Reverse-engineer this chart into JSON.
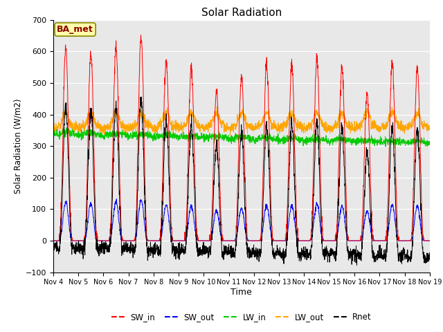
{
  "title": "Solar Radiation",
  "xlabel": "Time",
  "ylabel": "Solar Radiation (W/m2)",
  "station_label": "BA_met",
  "ylim": [
    -100,
    700
  ],
  "yticks": [
    -100,
    0,
    100,
    200,
    300,
    400,
    500,
    600,
    700
  ],
  "x_tick_labels": [
    "Nov 4",
    "Nov 5",
    "Nov 6",
    "Nov 7",
    "Nov 8",
    "Nov 9",
    "Nov 10",
    "Nov 11",
    "Nov 12",
    "Nov 13",
    "Nov 14",
    "Nov 15",
    "Nov 16",
    "Nov 17",
    "Nov 18",
    "Nov 19"
  ],
  "series_colors": {
    "SW_in": "#ff0000",
    "SW_out": "#0000ff",
    "LW_in": "#00cc00",
    "LW_out": "#ffa500",
    "Rnet": "#000000"
  },
  "legend_entries": [
    "SW_in",
    "SW_out",
    "LW_in",
    "LW_out",
    "Rnet"
  ],
  "n_days": 15,
  "pts_per_day": 144,
  "background_color": "#e8e8e8",
  "figure_color": "#ffffff",
  "sw_peaks": [
    612,
    595,
    612,
    645,
    567,
    550,
    475,
    525,
    555,
    555,
    580,
    550,
    465,
    570,
    545
  ],
  "lw_in_base": 335,
  "lw_out_base": 355
}
